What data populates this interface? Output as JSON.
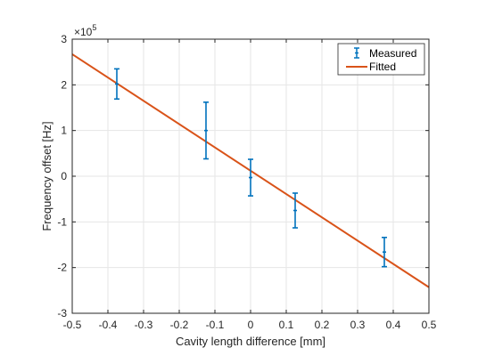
{
  "chart_data": {
    "type": "scatter",
    "xlabel": "Cavity length difference [mm]",
    "ylabel": "Frequency offset [Hz]",
    "y_exponent_label": "×10",
    "y_exponent_power": "5",
    "xlim": [
      -0.5,
      0.5
    ],
    "ylim": [
      -300000,
      300000
    ],
    "x_ticks": [
      -0.5,
      -0.4,
      -0.3,
      -0.2,
      -0.1,
      0,
      0.1,
      0.2,
      0.3,
      0.4,
      0.5
    ],
    "x_tick_labels": [
      "-0.5",
      "-0.4",
      "-0.3",
      "-0.2",
      "-0.1",
      "0",
      "0.1",
      "0.2",
      "0.3",
      "0.4",
      "0.5"
    ],
    "y_ticks": [
      -300000,
      -200000,
      -100000,
      0,
      100000,
      200000,
      300000
    ],
    "y_tick_labels": [
      "-3",
      "-2",
      "-1",
      "0",
      "1",
      "2",
      "3"
    ],
    "grid": true,
    "legend_position": "top-right",
    "colors": {
      "measured": "#0072BD",
      "fitted": "#D95319",
      "axis": "#262626",
      "grid": "#e6e6e6"
    },
    "series": [
      {
        "name": "Measured",
        "kind": "errorbar",
        "x": [
          -0.375,
          -0.125,
          0.0,
          0.125,
          0.375
        ],
        "y": [
          202000,
          100000,
          -3000,
          -75000,
          -166000
        ],
        "err_low": [
          33000,
          62000,
          40000,
          38000,
          32000
        ],
        "err_high": [
          33000,
          62000,
          40000,
          38000,
          32000
        ]
      },
      {
        "name": "Fitted",
        "kind": "line",
        "x": [
          -0.5,
          0.5
        ],
        "y": [
          267000,
          -243000
        ]
      }
    ]
  }
}
